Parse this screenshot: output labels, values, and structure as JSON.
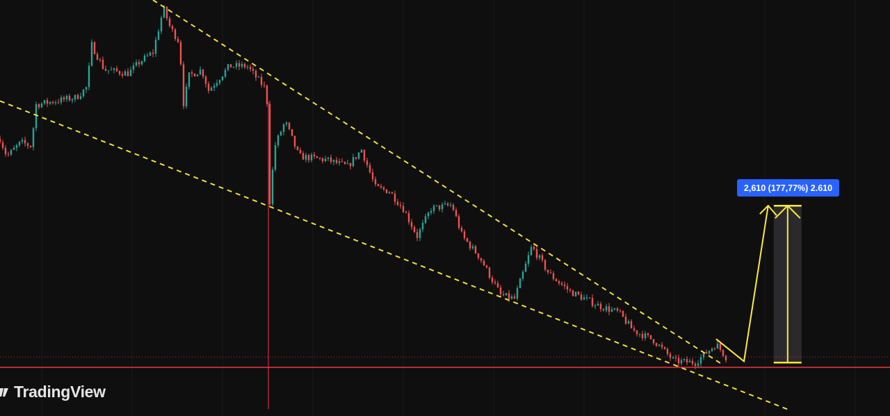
{
  "chart_data": {
    "type": "candlestick",
    "title": "",
    "xlabel": "",
    "ylabel": "",
    "ylim": [
      0.58,
      7.5
    ],
    "xlim": [
      0,
      320
    ],
    "grid": false,
    "colors": {
      "up": "#26a69a",
      "down": "#ef5350",
      "trendline": "#f5e03a",
      "support": "#f23645",
      "projection": "#ffeb3b",
      "label_bg": "#2962ff",
      "background": "#0f0f0f"
    },
    "price_path": [
      [
        0,
        5.19
      ],
      [
        2.5,
        4.9
      ],
      [
        7.5,
        5.13
      ],
      [
        11.2,
        5.07
      ],
      [
        13,
        5.76
      ],
      [
        20,
        5.82
      ],
      [
        27.5,
        5.88
      ],
      [
        31.2,
        6.05
      ],
      [
        33,
        6.75
      ],
      [
        37.5,
        6.34
      ],
      [
        46.2,
        6.28
      ],
      [
        50,
        6.46
      ],
      [
        55,
        6.63
      ],
      [
        58.8,
        7.36
      ],
      [
        61.2,
        7.04
      ],
      [
        64.5,
        6.8
      ],
      [
        66.2,
        5.65
      ],
      [
        67.5,
        6.23
      ],
      [
        72.5,
        6.34
      ],
      [
        75,
        6.0
      ],
      [
        82.5,
        6.4
      ],
      [
        88.8,
        6.4
      ],
      [
        95,
        6.05
      ],
      [
        96.2,
        5.76
      ],
      [
        97,
        4.15
      ],
      [
        98.8,
        5.07
      ],
      [
        102.5,
        5.48
      ],
      [
        107.5,
        4.9
      ],
      [
        117.5,
        4.84
      ],
      [
        125,
        4.73
      ],
      [
        130,
        5.01
      ],
      [
        135,
        4.38
      ],
      [
        140,
        4.32
      ],
      [
        145,
        4.03
      ],
      [
        150,
        3.57
      ],
      [
        155,
        4.03
      ],
      [
        162.5,
        4.09
      ],
      [
        166.2,
        3.57
      ],
      [
        172.5,
        3.22
      ],
      [
        180,
        2.59
      ],
      [
        185,
        2.53
      ],
      [
        187.5,
        2.88
      ],
      [
        191.2,
        3.4
      ],
      [
        197.5,
        2.94
      ],
      [
        205,
        2.65
      ],
      [
        215,
        2.42
      ],
      [
        222.5,
        2.3
      ],
      [
        227.5,
        2.01
      ],
      [
        235,
        1.84
      ],
      [
        242.5,
        1.49
      ],
      [
        250,
        1.47
      ],
      [
        257.5,
        1.78
      ],
      [
        261.2,
        1.55
      ]
    ],
    "annotations": {
      "upper_trendline": [
        [
          55,
          7.5
        ],
        [
          260,
          1.43
        ]
      ],
      "lower_trendline": [
        [
          0,
          5.82
        ],
        [
          283.8,
          0.68
        ]
      ],
      "support_level": 1.39,
      "last_price_level": 1.56,
      "event_bar": 96.5,
      "projection_path": [
        [
          257.5,
          1.86
        ],
        [
          267.5,
          1.49
        ],
        [
          276.2,
          4.08
        ]
      ],
      "measure": {
        "from": 1.468,
        "to": 4.078,
        "bar": 283.2,
        "label": "2,610 (177,77%) 2.610"
      }
    }
  },
  "branding": {
    "logo_text": "TradingView"
  }
}
